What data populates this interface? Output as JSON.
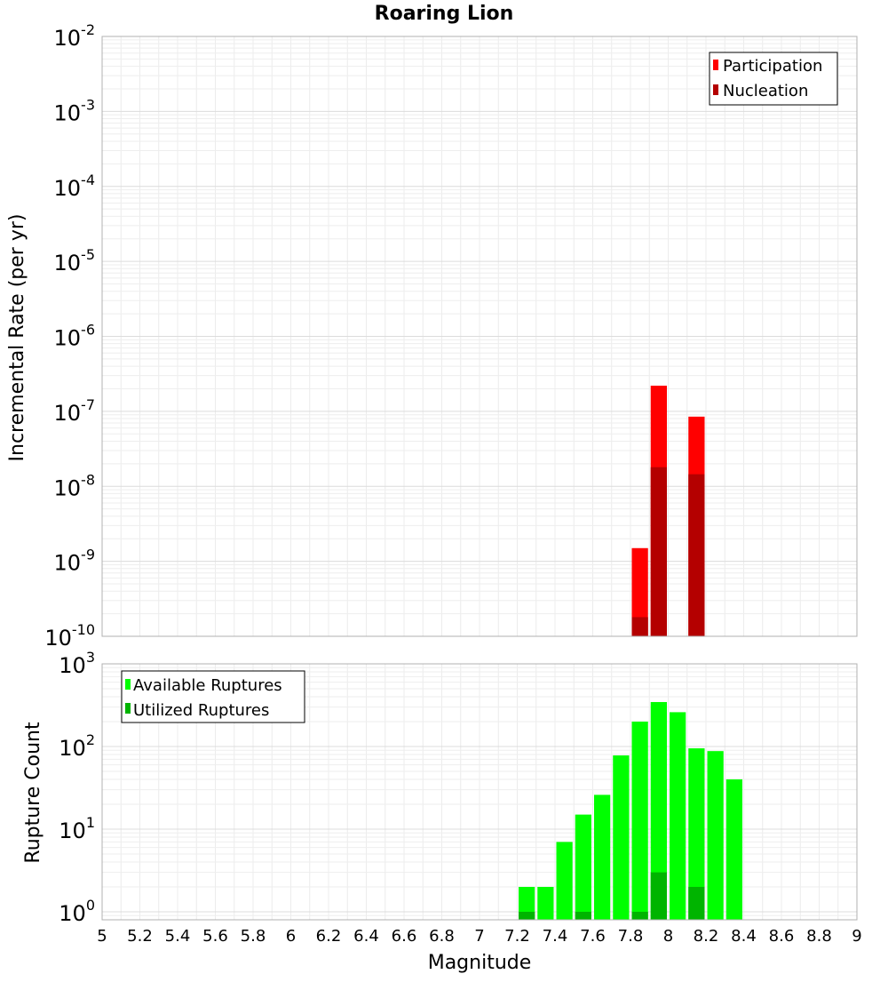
{
  "chart_data": [
    {
      "type": "bar",
      "title": "Roaring Lion",
      "xlabel": "Magnitude",
      "ylabel": "Incremental Rate (per yr)",
      "xlim": [
        5,
        9
      ],
      "ylim": [
        1e-10,
        0.01
      ],
      "y_scale": "log",
      "grid": true,
      "legend_placement": "top-right",
      "x_tick_labels": [
        "5",
        "5.2",
        "5.4",
        "5.6",
        "5.8",
        "6",
        "6.2",
        "6.4",
        "6.6",
        "6.8",
        "7",
        "7.2",
        "7.4",
        "7.6",
        "7.8",
        "8",
        "8.2",
        "8.4",
        "8.6",
        "8.8",
        "9"
      ],
      "y_tick_labels": [
        {
          "base": "10",
          "exp": "-10"
        },
        {
          "base": "10",
          "exp": "-9"
        },
        {
          "base": "10",
          "exp": "-8"
        },
        {
          "base": "10",
          "exp": "-7"
        },
        {
          "base": "10",
          "exp": "-6"
        },
        {
          "base": "10",
          "exp": "-5"
        },
        {
          "base": "10",
          "exp": "-4"
        },
        {
          "base": "10",
          "exp": "-3"
        },
        {
          "base": "10",
          "exp": "-2"
        }
      ],
      "bar_width": 0.1,
      "series": [
        {
          "name": "Participation",
          "color": "#ff0000",
          "points": [
            {
              "x": 7.85,
              "y": 1.5e-09
            },
            {
              "x": 7.95,
              "y": 2.2e-07
            },
            {
              "x": 8.15,
              "y": 8.5e-08
            }
          ]
        },
        {
          "name": "Nucleation",
          "color": "#b40000",
          "points": [
            {
              "x": 7.85,
              "y": 1.8e-10
            },
            {
              "x": 7.95,
              "y": 1.8e-08
            },
            {
              "x": 8.15,
              "y": 1.45e-08
            }
          ]
        }
      ]
    },
    {
      "type": "bar",
      "xlabel": "Magnitude",
      "ylabel": "Rupture Count",
      "xlim": [
        5,
        9
      ],
      "ylim": [
        0.8,
        1000
      ],
      "y_scale": "log",
      "grid": true,
      "legend_placement": "top-left",
      "y_tick_labels": [
        {
          "base": "10",
          "exp": "0"
        },
        {
          "base": "10",
          "exp": "1"
        },
        {
          "base": "10",
          "exp": "2"
        },
        {
          "base": "10",
          "exp": "3"
        }
      ],
      "bar_width": 0.1,
      "series": [
        {
          "name": "Available Ruptures",
          "color": "#00ff00",
          "points": [
            {
              "x": 7.25,
              "y": 2
            },
            {
              "x": 7.35,
              "y": 2
            },
            {
              "x": 7.45,
              "y": 7
            },
            {
              "x": 7.55,
              "y": 15
            },
            {
              "x": 7.65,
              "y": 26
            },
            {
              "x": 7.75,
              "y": 78
            },
            {
              "x": 7.85,
              "y": 200
            },
            {
              "x": 7.95,
              "y": 345
            },
            {
              "x": 8.05,
              "y": 260
            },
            {
              "x": 8.15,
              "y": 95
            },
            {
              "x": 8.25,
              "y": 88
            },
            {
              "x": 8.35,
              "y": 40
            }
          ]
        },
        {
          "name": "Utilized Ruptures",
          "color": "#00b400",
          "points": [
            {
              "x": 7.25,
              "y": 1
            },
            {
              "x": 7.55,
              "y": 1
            },
            {
              "x": 7.85,
              "y": 1
            },
            {
              "x": 7.95,
              "y": 3
            },
            {
              "x": 8.15,
              "y": 2
            }
          ]
        }
      ]
    }
  ]
}
